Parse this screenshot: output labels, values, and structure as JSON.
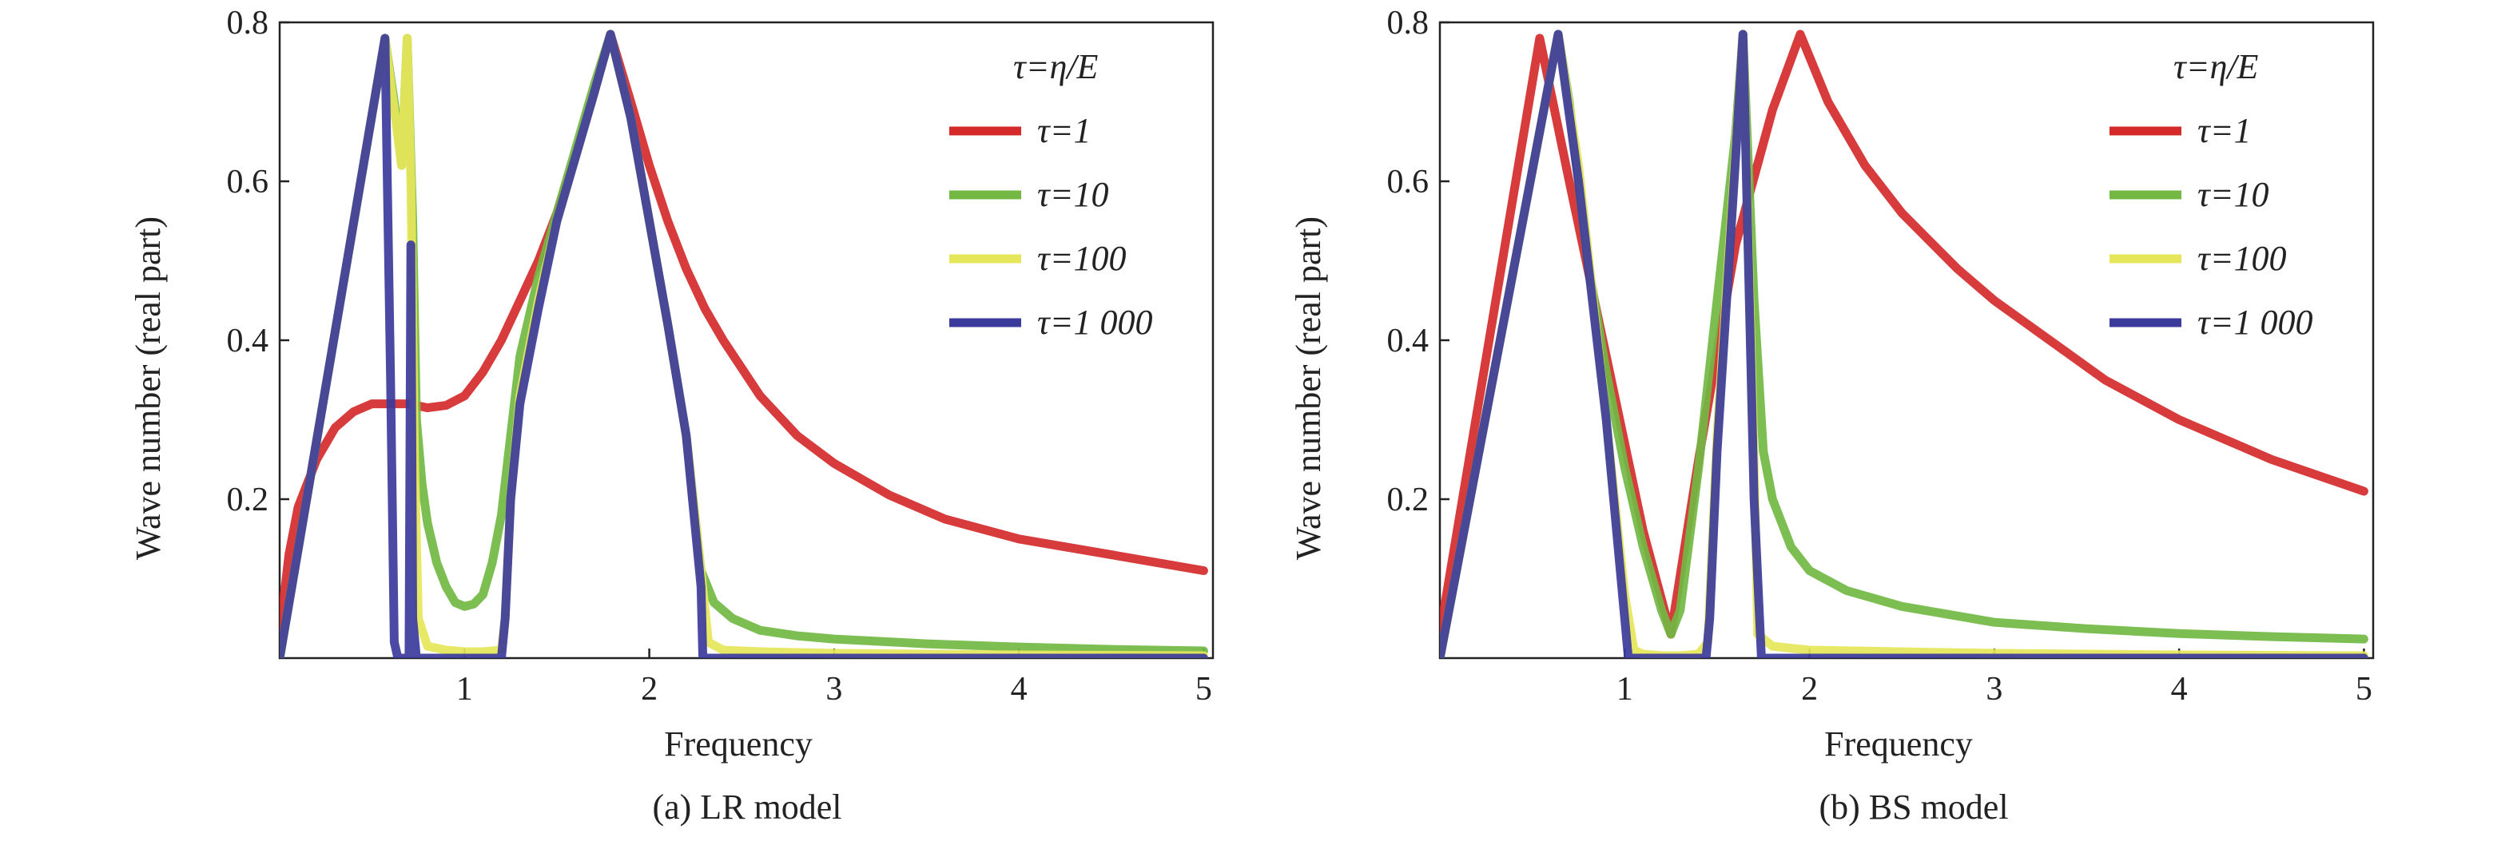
{
  "chart_data": [
    {
      "type": "line",
      "caption": "(a) LR model",
      "xlabel": "Frequency",
      "ylabel": "Wave number (real part)",
      "xlim": [
        0,
        5.05
      ],
      "ylim": [
        0,
        0.8
      ],
      "xticks": [
        1,
        2,
        3,
        4,
        5
      ],
      "yticks": [
        0.2,
        0.4,
        0.6,
        0.8
      ],
      "legend_title": "τ=η/E",
      "legend_position": "top-right",
      "grid": false,
      "series": [
        {
          "name": "τ=1",
          "color": "#d42a2a",
          "x": [
            0,
            0.05,
            0.1,
            0.2,
            0.3,
            0.4,
            0.5,
            0.6,
            0.7,
            0.8,
            0.9,
            1.0,
            1.1,
            1.2,
            1.3,
            1.4,
            1.5,
            1.6,
            1.7,
            1.79,
            1.9,
            2.0,
            2.1,
            2.2,
            2.3,
            2.4,
            2.6,
            2.8,
            3.0,
            3.3,
            3.6,
            4.0,
            4.5,
            5.0
          ],
          "y": [
            0.03,
            0.13,
            0.19,
            0.25,
            0.29,
            0.31,
            0.32,
            0.32,
            0.32,
            0.315,
            0.318,
            0.33,
            0.36,
            0.4,
            0.45,
            0.5,
            0.56,
            0.63,
            0.71,
            0.785,
            0.7,
            0.62,
            0.55,
            0.49,
            0.44,
            0.4,
            0.33,
            0.28,
            0.245,
            0.205,
            0.175,
            0.15,
            0.13,
            0.11
          ]
        },
        {
          "name": "τ=10",
          "color": "#72b843",
          "x": [
            0,
            0.57,
            0.62,
            0.66,
            0.69,
            0.72,
            0.74,
            0.77,
            0.8,
            0.85,
            0.9,
            0.95,
            1.0,
            1.05,
            1.1,
            1.15,
            1.2,
            1.25,
            1.3,
            1.4,
            1.5,
            1.6,
            1.7,
            1.79,
            1.9,
            2.0,
            2.1,
            2.2,
            2.28,
            2.35,
            2.45,
            2.6,
            2.8,
            3.0,
            3.5,
            4.0,
            4.5,
            5.0
          ],
          "y": [
            0,
            0.78,
            0.7,
            0.62,
            0.78,
            0.55,
            0.3,
            0.22,
            0.17,
            0.12,
            0.09,
            0.07,
            0.065,
            0.068,
            0.08,
            0.12,
            0.18,
            0.28,
            0.38,
            0.48,
            0.56,
            0.64,
            0.72,
            0.785,
            0.68,
            0.55,
            0.42,
            0.28,
            0.11,
            0.07,
            0.05,
            0.035,
            0.028,
            0.024,
            0.018,
            0.014,
            0.011,
            0.009
          ]
        },
        {
          "name": "τ=100",
          "color": "#e6e65a",
          "x": [
            0,
            0.57,
            0.62,
            0.66,
            0.69,
            0.71,
            0.73,
            0.75,
            0.8,
            0.9,
            1.0,
            1.1,
            1.2,
            1.22,
            1.25,
            1.3,
            1.4,
            1.5,
            1.6,
            1.7,
            1.79,
            1.9,
            2.0,
            2.1,
            2.2,
            2.28,
            2.32,
            2.4,
            2.6,
            3.0,
            4.0,
            5.0
          ],
          "y": [
            0,
            0.78,
            0.69,
            0.62,
            0.78,
            0.6,
            0.25,
            0.05,
            0.015,
            0.01,
            0.008,
            0.008,
            0.01,
            0.05,
            0.2,
            0.33,
            0.45,
            0.55,
            0.63,
            0.71,
            0.785,
            0.68,
            0.55,
            0.42,
            0.28,
            0.11,
            0.02,
            0.01,
            0.008,
            0.006,
            0.004,
            0.003
          ]
        },
        {
          "name": "τ=1 000",
          "color": "#3b3b9c",
          "x": [
            0,
            0.57,
            0.6,
            0.62,
            0.64,
            0.7,
            0.71,
            0.72,
            0.74,
            0.78,
            0.9,
            1.0,
            1.1,
            1.2,
            1.22,
            1.25,
            1.3,
            1.4,
            1.5,
            1.6,
            1.7,
            1.79,
            1.9,
            2.0,
            2.1,
            2.2,
            2.28,
            2.29,
            2.35,
            3.0,
            4.0,
            5.0
          ],
          "y": [
            0,
            0.78,
            0.35,
            0.02,
            0.0,
            0.0,
            0.52,
            0.05,
            0.0,
            0.0,
            0.0,
            0.0,
            0.0,
            0.0,
            0.05,
            0.2,
            0.32,
            0.44,
            0.55,
            0.63,
            0.71,
            0.785,
            0.68,
            0.55,
            0.42,
            0.28,
            0.09,
            0.0,
            0.0,
            0.0,
            0.0,
            0.0
          ]
        }
      ]
    },
    {
      "type": "line",
      "caption": "(b) BS model",
      "xlabel": "Frequency",
      "ylabel": "Wave number (real part)",
      "xlim": [
        0,
        5.05
      ],
      "ylim": [
        0,
        0.8
      ],
      "xticks": [
        1,
        2,
        3,
        4,
        5
      ],
      "yticks": [
        0.2,
        0.4,
        0.6,
        0.8
      ],
      "legend_title": "τ=η/E",
      "legend_position": "top-right",
      "grid": false,
      "series": [
        {
          "name": "τ=1",
          "color": "#d42a2a",
          "x": [
            0,
            0.54,
            0.7,
            0.9,
            1.1,
            1.25,
            1.4,
            1.6,
            1.8,
            1.95,
            2.1,
            2.3,
            2.5,
            2.8,
            3.0,
            3.3,
            3.6,
            4.0,
            4.5,
            5.0
          ],
          "y": [
            0.03,
            0.78,
            0.6,
            0.38,
            0.16,
            0.03,
            0.25,
            0.52,
            0.69,
            0.785,
            0.7,
            0.62,
            0.56,
            0.49,
            0.45,
            0.4,
            0.35,
            0.3,
            0.25,
            0.21
          ]
        },
        {
          "name": "τ=10",
          "color": "#72b843",
          "x": [
            0,
            0.64,
            0.7,
            0.8,
            0.9,
            1.0,
            1.1,
            1.2,
            1.25,
            1.3,
            1.4,
            1.5,
            1.6,
            1.64,
            1.7,
            1.75,
            1.8,
            1.9,
            2.0,
            2.2,
            2.5,
            3.0,
            3.5,
            4.0,
            4.5,
            5.0
          ],
          "y": [
            0,
            0.785,
            0.7,
            0.5,
            0.36,
            0.24,
            0.14,
            0.06,
            0.03,
            0.06,
            0.24,
            0.45,
            0.66,
            0.785,
            0.45,
            0.26,
            0.2,
            0.14,
            0.11,
            0.085,
            0.065,
            0.045,
            0.037,
            0.031,
            0.027,
            0.024
          ]
        },
        {
          "name": "τ=100",
          "color": "#e6e65a",
          "x": [
            0,
            0.64,
            0.75,
            0.9,
            1.0,
            1.05,
            1.1,
            1.2,
            1.3,
            1.4,
            1.45,
            1.5,
            1.6,
            1.64,
            1.7,
            1.72,
            1.8,
            2.0,
            3.0,
            4.0,
            5.0
          ],
          "y": [
            0,
            0.785,
            0.62,
            0.3,
            0.08,
            0.01,
            0.005,
            0.003,
            0.003,
            0.005,
            0.02,
            0.28,
            0.64,
            0.785,
            0.25,
            0.03,
            0.015,
            0.01,
            0.006,
            0.004,
            0.003
          ]
        },
        {
          "name": "τ=1 000",
          "color": "#3b3b9c",
          "x": [
            0,
            0.64,
            0.75,
            0.9,
            1.0,
            1.02,
            1.1,
            1.3,
            1.44,
            1.46,
            1.5,
            1.6,
            1.64,
            1.7,
            1.74,
            1.76,
            2.0,
            3.0,
            4.0,
            5.0
          ],
          "y": [
            0,
            0.785,
            0.6,
            0.3,
            0.05,
            0.0,
            0.0,
            0.0,
            0.0,
            0.05,
            0.26,
            0.63,
            0.785,
            0.2,
            0.0,
            0.0,
            0.0,
            0.0,
            0.0,
            0.0
          ]
        }
      ]
    }
  ]
}
